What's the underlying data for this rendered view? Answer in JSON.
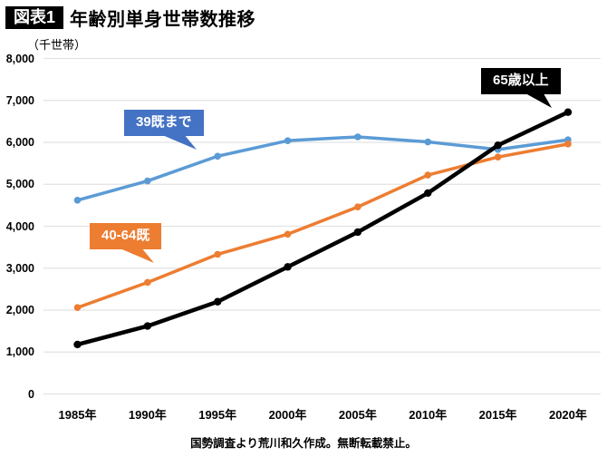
{
  "header": {
    "badge": "図表1",
    "title": "年齢別単身世帯数推移"
  },
  "chart": {
    "unit": "（千世帯）",
    "source": "国勢調査より荒川和久作成。無断転載禁止。"
  },
  "chart_data": {
    "type": "line",
    "title": "年齢別単身世帯数推移",
    "ylabel": "千世帯",
    "categories": [
      "1985年",
      "1990年",
      "1995年",
      "2000年",
      "2005年",
      "2010年",
      "2015年",
      "2020年"
    ],
    "series": [
      {
        "name": "39既まで",
        "color": "#5B9BD5",
        "label_bg": "#4472C4",
        "values": [
          4620,
          5080,
          5670,
          6040,
          6130,
          6010,
          5830,
          6060
        ]
      },
      {
        "name": "40-64既",
        "color": "#ED7D31",
        "label_bg": "#ED7D31",
        "values": [
          2060,
          2660,
          3330,
          3810,
          4460,
          5220,
          5650,
          5960
        ]
      },
      {
        "name": "65歳以上",
        "color": "#000000",
        "label_bg": "#000000",
        "values": [
          1180,
          1620,
          2200,
          3030,
          3860,
          4790,
          5930,
          6720
        ]
      }
    ],
    "ylim": [
      0,
      8000
    ],
    "y_tick_step": 1000,
    "y_tick_labels": [
      "0",
      "1,000",
      "2,000",
      "3,000",
      "4,000",
      "5,000",
      "6,000",
      "7,000",
      "8,000"
    ],
    "grid": "horizontal",
    "legend": "callout-labels"
  }
}
